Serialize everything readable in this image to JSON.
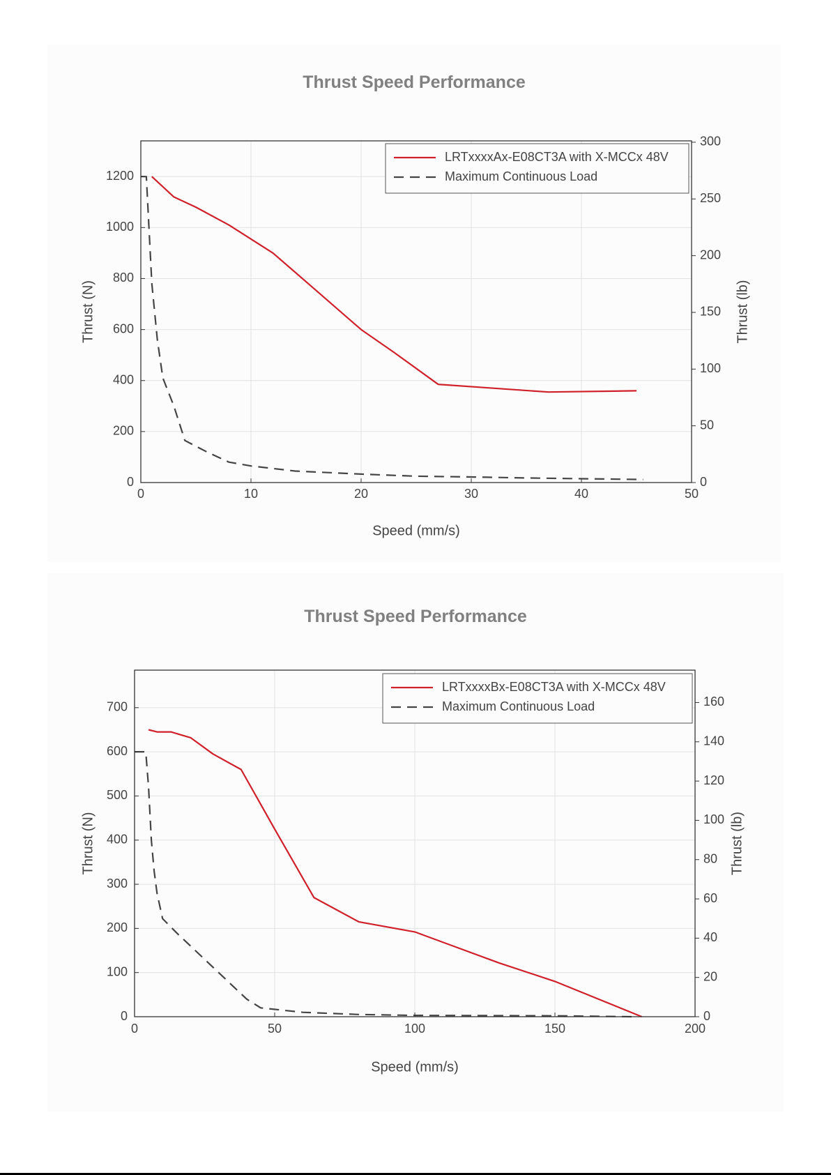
{
  "chart_data": [
    {
      "type": "line",
      "title": "Thrust Speed Performance",
      "xlabel": "Speed (mm/s)",
      "ylabel": "Thrust (N)",
      "y2label": "Thrust (lb)",
      "xlim": [
        0,
        50
      ],
      "ylim": [
        0,
        1340
      ],
      "y2lim": [
        0,
        301.2
      ],
      "xticks": [
        "0",
        "10",
        "20",
        "30",
        "40",
        "50"
      ],
      "yticks": [
        "0",
        "200",
        "400",
        "600",
        "800",
        "1000",
        "1200"
      ],
      "y2ticks": [
        "0",
        "50",
        "100",
        "150",
        "200",
        "250",
        "300"
      ],
      "grid": true,
      "legend_position": "top-right",
      "series": [
        {
          "name": "LRTxxxxAx-E08CT3A with X-MCCx 48V",
          "color": "#d0202a",
          "style": "solid",
          "x": [
            1,
            3,
            5,
            8,
            12,
            16,
            20,
            23,
            27,
            32,
            37,
            45
          ],
          "y": [
            1200,
            1120,
            1080,
            1010,
            900,
            750,
            600,
            510,
            385,
            370,
            355,
            360
          ]
        },
        {
          "name": "Maximum Continuous Load",
          "color": "#444444",
          "style": "dashed",
          "x": [
            0,
            0.5,
            1.0,
            1.5,
            2.0,
            3.0,
            4.0,
            6.0,
            8.0,
            10.0,
            14.0,
            20.0,
            25.0,
            30.0,
            35.0,
            40.0,
            45.6
          ],
          "y": [
            1200,
            1200,
            780,
            560,
            410,
            300,
            165,
            120,
            80,
            65,
            45,
            33,
            25,
            22,
            18,
            15,
            12
          ]
        }
      ]
    },
    {
      "type": "line",
      "title": "Thrust Speed Performance",
      "xlabel": "Speed (mm/s)",
      "ylabel": "Thrust (N)",
      "y2label": "Thrust (lb)",
      "xlim": [
        0,
        200
      ],
      "ylim": [
        0,
        785
      ],
      "y2lim": [
        0,
        176.5
      ],
      "xticks": [
        "0",
        "50",
        "100",
        "150",
        "200"
      ],
      "yticks": [
        "0",
        "100",
        "200",
        "300",
        "400",
        "500",
        "600",
        "700"
      ],
      "y2ticks": [
        "0",
        "20",
        "40",
        "60",
        "80",
        "100",
        "120",
        "140",
        "160"
      ],
      "grid": true,
      "legend_position": "top-right",
      "series": [
        {
          "name": "LRTxxxxBx-E08CT3A with X-MCCx 48V",
          "color": "#d0202a",
          "style": "solid",
          "x": [
            5,
            8,
            13,
            20,
            28,
            38,
            50,
            64,
            80,
            100,
            130,
            150,
            181
          ],
          "y": [
            650,
            645,
            645,
            632,
            595,
            560,
            425,
            270,
            215,
            192,
            122,
            80,
            0
          ]
        },
        {
          "name": "Maximum Continuous Load",
          "color": "#444444",
          "style": "dashed",
          "x": [
            0,
            4,
            5,
            6,
            7,
            8,
            10,
            15,
            20,
            30,
            40,
            45,
            60,
            80,
            100,
            150,
            178
          ],
          "y": [
            600,
            600,
            520,
            400,
            330,
            280,
            222,
            190,
            160,
            100,
            40,
            20,
            10,
            5,
            3,
            2,
            0
          ]
        }
      ]
    }
  ]
}
